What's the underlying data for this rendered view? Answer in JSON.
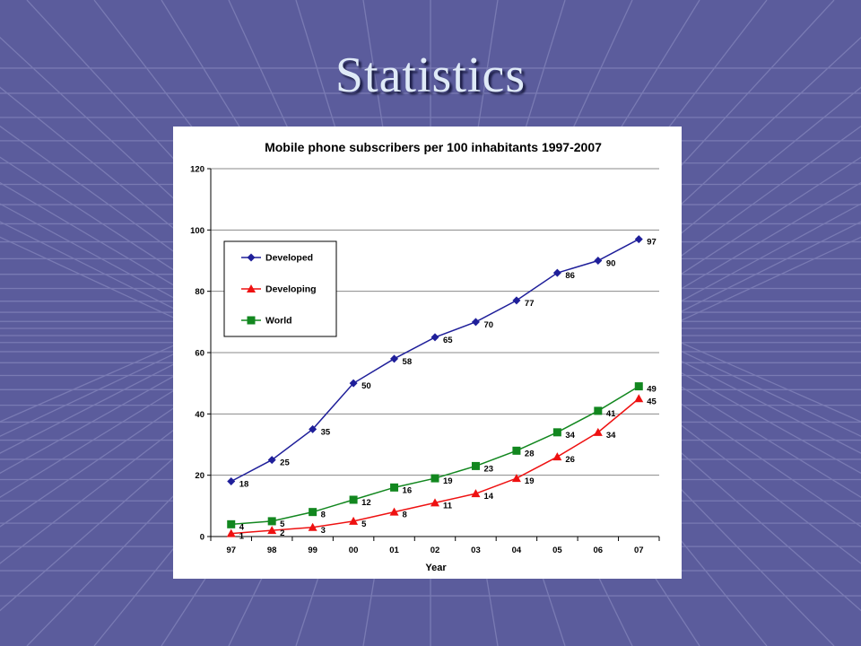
{
  "slide": {
    "title": "Statistics"
  },
  "colors": {
    "background": "#5b5c9c",
    "grid_line": "#7f80b8",
    "title_text": "#dfeaf7",
    "developed": "#1f1f9a",
    "developing": "#ee1111",
    "world": "#12871f"
  },
  "chart_data": {
    "type": "line",
    "title": "Mobile phone subscribers per 100 inhabitants 1997-2007",
    "xlabel": "Year",
    "ylabel": "",
    "categories": [
      "97",
      "98",
      "99",
      "00",
      "01",
      "02",
      "03",
      "04",
      "05",
      "06",
      "07"
    ],
    "ylim": [
      0,
      120
    ],
    "yticks": [
      "0",
      "20",
      "40",
      "60",
      "80",
      "100",
      "120"
    ],
    "grid": true,
    "legend_position": "top-left",
    "series": [
      {
        "name": "Developed",
        "marker": "diamond",
        "color": "#1f1f9a",
        "values": [
          18,
          25,
          35,
          50,
          58,
          65,
          70,
          77,
          86,
          90,
          97
        ]
      },
      {
        "name": "Developing",
        "marker": "triangle",
        "color": "#ee1111",
        "values": [
          1,
          2,
          3,
          5,
          8,
          11,
          14,
          19,
          26,
          34,
          45
        ]
      },
      {
        "name": "World",
        "marker": "square",
        "color": "#12871f",
        "values": [
          4,
          5,
          8,
          12,
          16,
          19,
          23,
          28,
          34,
          41,
          49
        ]
      }
    ]
  }
}
